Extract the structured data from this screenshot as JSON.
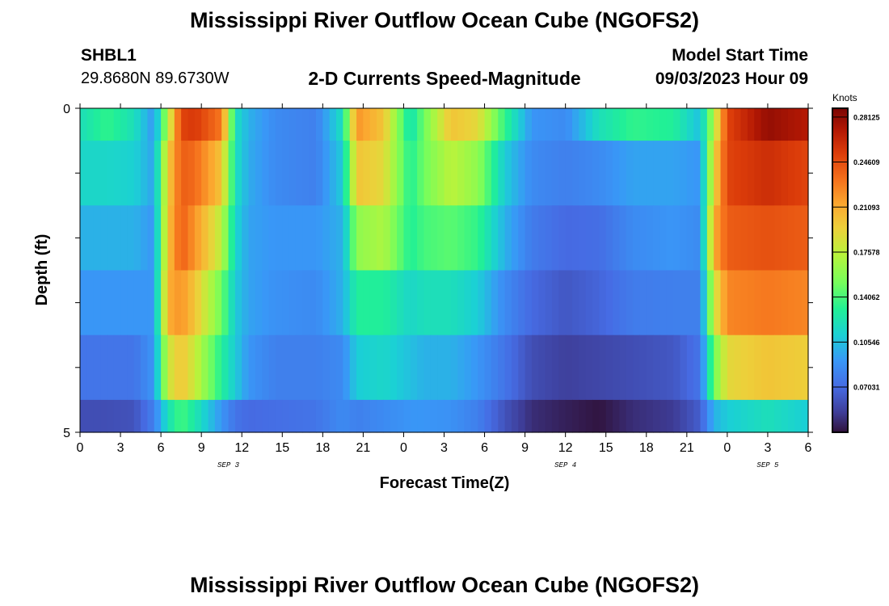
{
  "header": {
    "title": "Mississippi River Outflow Ocean Cube (NGOFS2)",
    "station_id": "SHBL1",
    "coords": "29.8680N  89.6730W",
    "subtitle": "2-D Currents Speed-Magnitude",
    "model_start_label": "Model Start Time",
    "model_start_value": "09/03/2023 Hour 09"
  },
  "footer": {
    "title": "Mississippi River Outflow Ocean Cube (NGOFS2)"
  },
  "chart_data": {
    "type": "heatmap",
    "xlabel": "Forecast Time(Z)",
    "ylabel": "Depth (ft)",
    "x_unit": "hours from SEP 3 00Z",
    "xlim": [
      0,
      54
    ],
    "ylim": [
      0,
      5
    ],
    "x_tick_values": [
      0,
      3,
      6,
      9,
      12,
      15,
      18,
      21,
      24,
      27,
      30,
      33,
      36,
      39,
      42,
      45,
      48,
      51,
      54
    ],
    "x_tick_labels": [
      "0",
      "3",
      "6",
      "9",
      "12",
      "15",
      "18",
      "21",
      "0",
      "3",
      "6",
      "9",
      "12",
      "15",
      "18",
      "21",
      "0",
      "3",
      "6"
    ],
    "y_tick_labels": [
      "0",
      "5"
    ],
    "date_labels": [
      {
        "text": "SEP 3",
        "hour": 11
      },
      {
        "text": "SEP 4",
        "hour": 36
      },
      {
        "text": "SEP 5",
        "hour": 51
      }
    ],
    "colorbar": {
      "unit": "Knots",
      "min": 0.035,
      "max": 0.2881,
      "ticks": [
        "0.28125",
        "0.24609",
        "0.21093",
        "0.17578",
        "0.14062",
        "0.10546",
        "0.07031"
      ],
      "tick_values": [
        0.28125,
        0.24609,
        0.21093,
        0.17578,
        0.14062,
        0.10546,
        0.07031
      ]
    },
    "depth_layers": [
      0.25,
      1.0,
      2.0,
      3.0,
      4.0,
      4.75
    ],
    "layer_bounds": [
      0,
      0.5,
      1.5,
      2.5,
      3.5,
      4.5,
      5
    ],
    "time_knots": [
      0,
      2,
      4,
      5.5,
      6.5,
      7.5,
      8.5,
      10.5,
      11.5,
      12.5,
      14.5,
      17.5,
      19.5,
      20.5,
      22.5,
      24.5,
      25.5,
      27.5,
      29.5,
      31.5,
      33.5,
      36,
      38.5,
      41,
      44,
      46,
      47,
      48,
      51,
      54
    ],
    "speed_profiles": [
      [
        0.12,
        0.135,
        0.12,
        0.09,
        0.17,
        0.25,
        0.255,
        0.23,
        0.12,
        0.1,
        0.085,
        0.08,
        0.12,
        0.22,
        0.2,
        0.12,
        0.15,
        0.2,
        0.19,
        0.135,
        0.09,
        0.085,
        0.12,
        0.135,
        0.13,
        0.105,
        0.17,
        0.25,
        0.28,
        0.27
      ],
      [
        0.115,
        0.115,
        0.112,
        0.095,
        0.195,
        0.24,
        0.235,
        0.2,
        0.12,
        0.098,
        0.085,
        0.08,
        0.11,
        0.2,
        0.19,
        0.13,
        0.15,
        0.175,
        0.16,
        0.11,
        0.085,
        0.08,
        0.085,
        0.095,
        0.095,
        0.09,
        0.19,
        0.25,
        0.26,
        0.25
      ],
      [
        0.1,
        0.1,
        0.1,
        0.09,
        0.2,
        0.24,
        0.22,
        0.175,
        0.115,
        0.095,
        0.09,
        0.09,
        0.1,
        0.16,
        0.17,
        0.13,
        0.14,
        0.145,
        0.135,
        0.1,
        0.078,
        0.07,
        0.072,
        0.085,
        0.09,
        0.085,
        0.21,
        0.24,
        0.245,
        0.24
      ],
      [
        0.09,
        0.09,
        0.09,
        0.09,
        0.21,
        0.22,
        0.2,
        0.15,
        0.11,
        0.095,
        0.088,
        0.085,
        0.1,
        0.13,
        0.13,
        0.115,
        0.12,
        0.12,
        0.11,
        0.085,
        0.07,
        0.062,
        0.068,
        0.078,
        0.08,
        0.08,
        0.18,
        0.225,
        0.23,
        0.225
      ],
      [
        0.075,
        0.075,
        0.075,
        0.09,
        0.18,
        0.2,
        0.18,
        0.13,
        0.11,
        0.09,
        0.08,
        0.08,
        0.085,
        0.11,
        0.115,
        0.105,
        0.1,
        0.1,
        0.09,
        0.075,
        0.058,
        0.052,
        0.055,
        0.058,
        0.062,
        0.075,
        0.15,
        0.19,
        0.2,
        0.195
      ],
      [
        0.058,
        0.058,
        0.06,
        0.08,
        0.12,
        0.14,
        0.125,
        0.09,
        0.075,
        0.07,
        0.072,
        0.075,
        0.085,
        0.08,
        0.085,
        0.09,
        0.09,
        0.088,
        0.08,
        0.06,
        0.045,
        0.04,
        0.036,
        0.045,
        0.05,
        0.065,
        0.1,
        0.11,
        0.12,
        0.11
      ]
    ]
  }
}
